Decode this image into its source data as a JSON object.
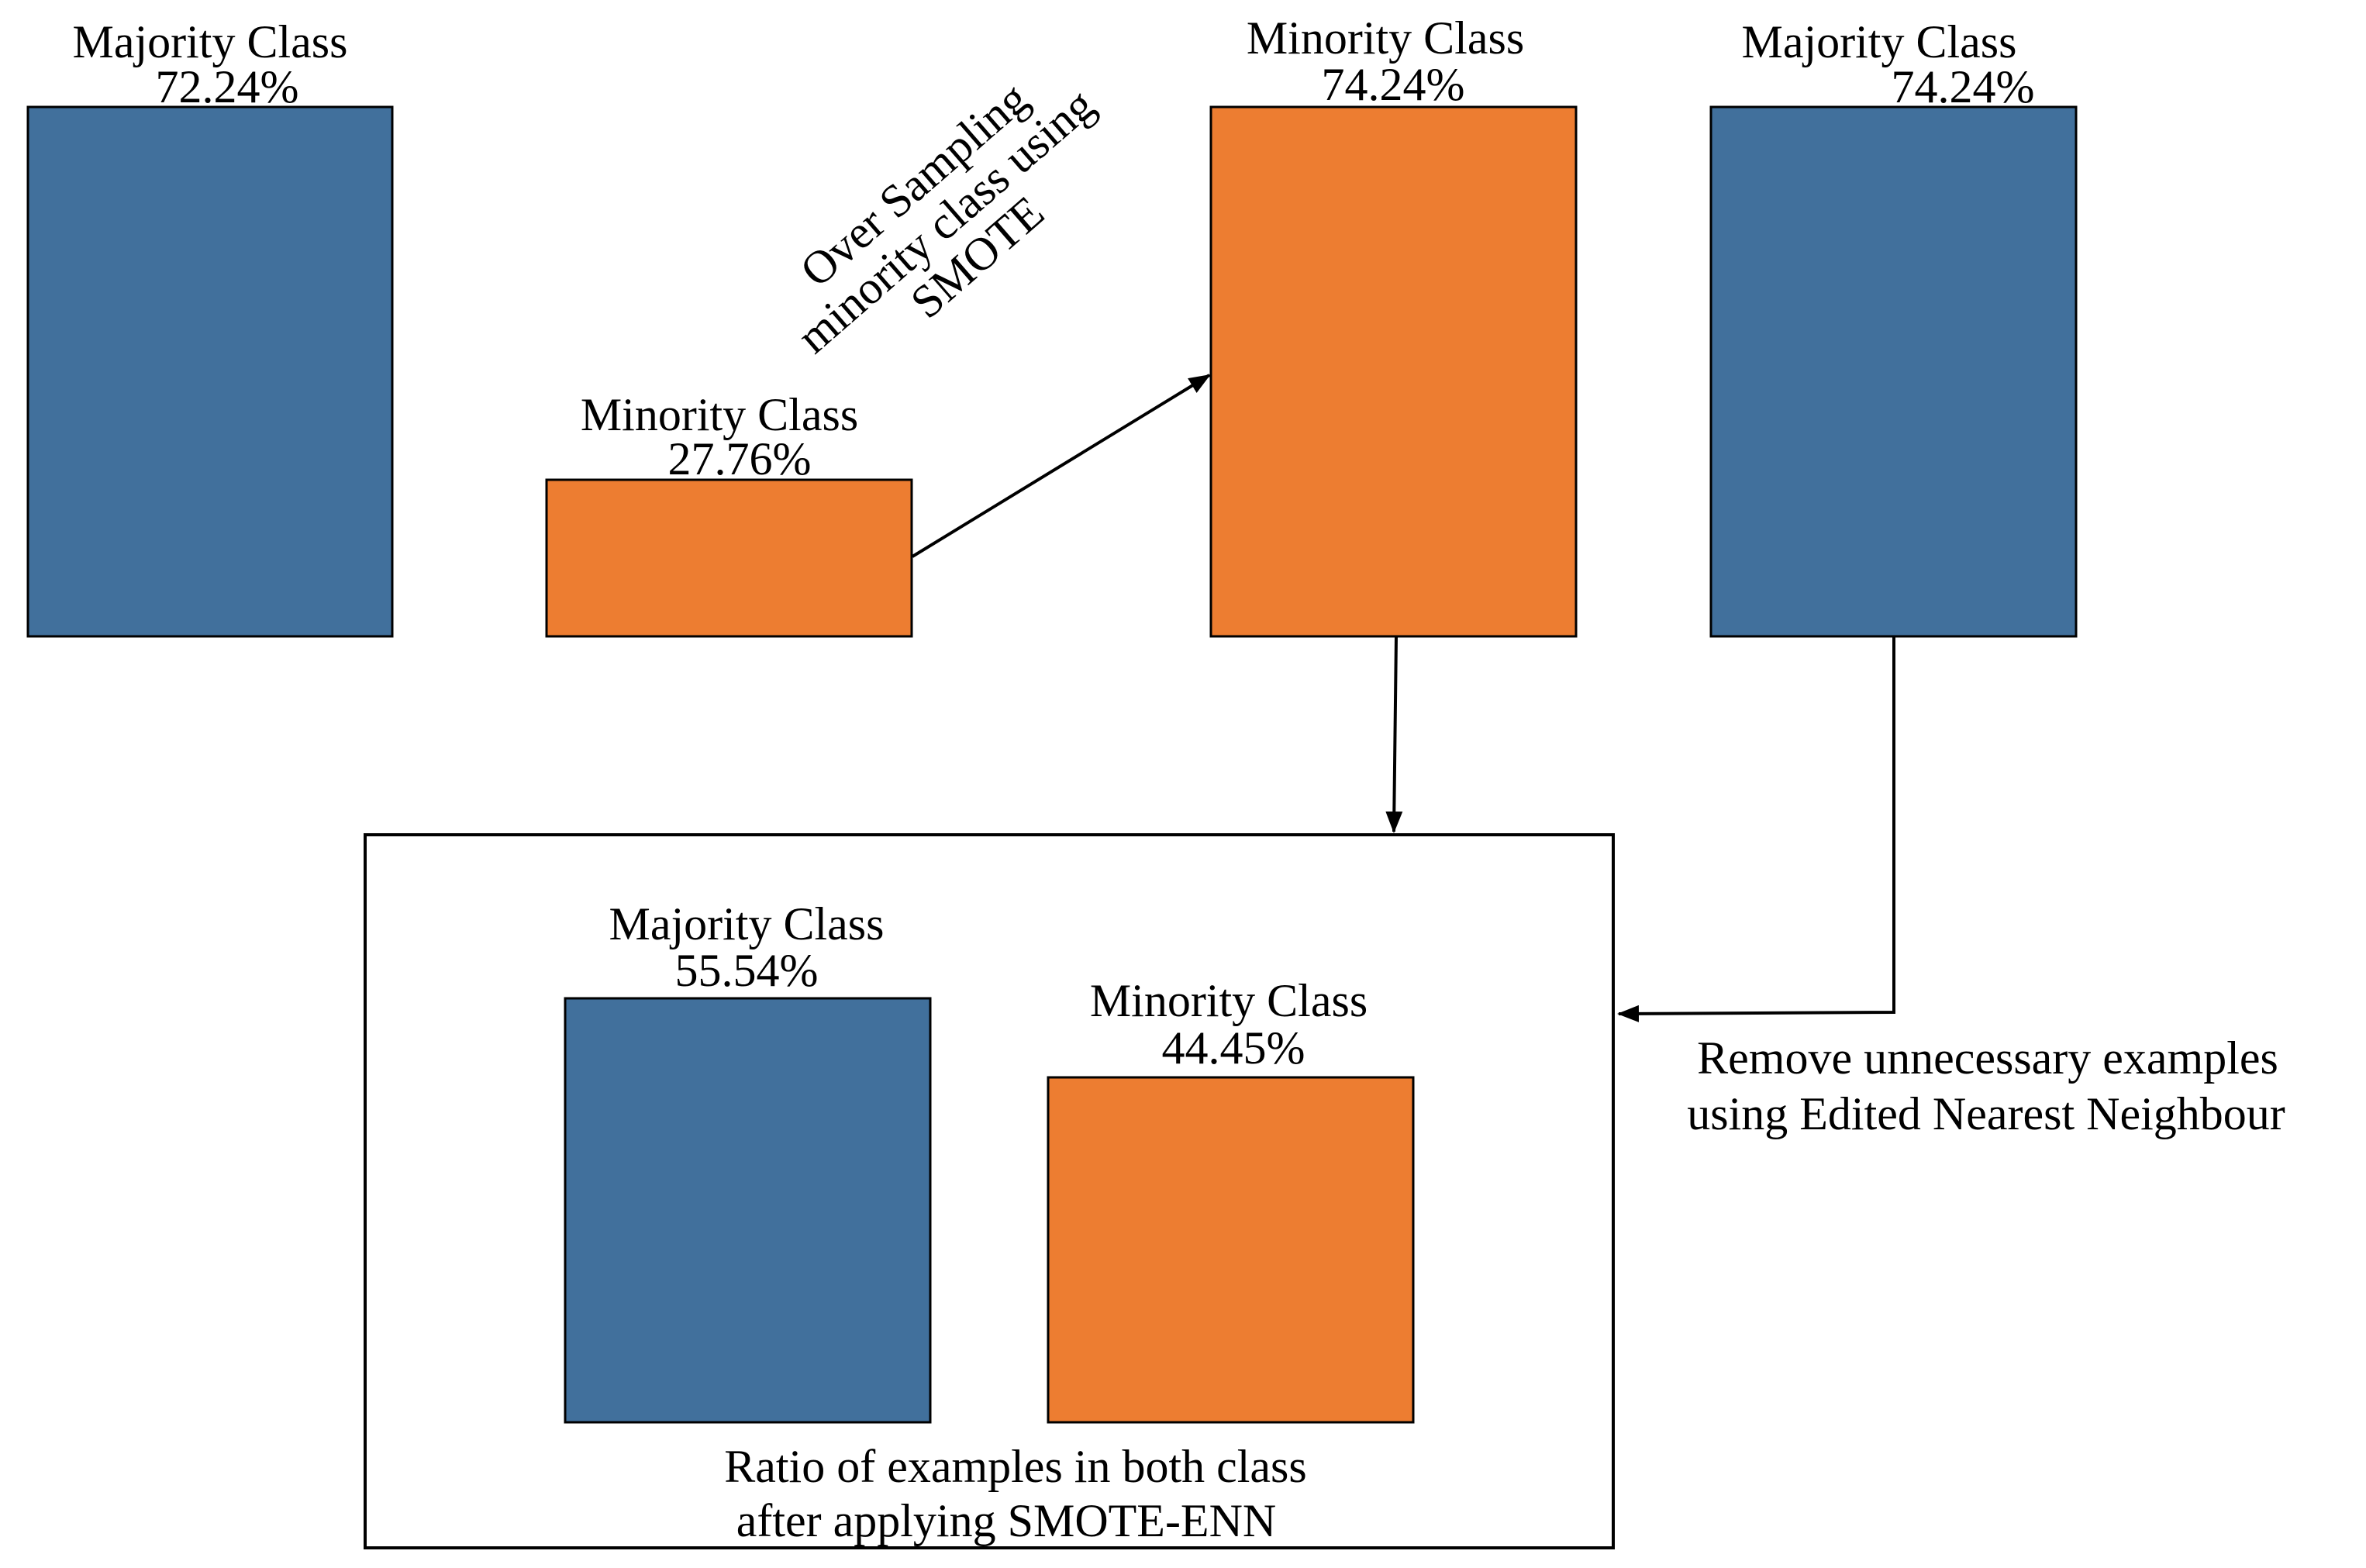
{
  "colors": {
    "majority": "#41709C",
    "minority": "#ED7D31",
    "stroke": "#000000",
    "background": "#FFFFFF"
  },
  "original": {
    "majority": {
      "label": "Majority Class",
      "percent": "72.24%",
      "value": 72.24
    },
    "minority": {
      "label": "Minority Class",
      "percent": "27.76%",
      "value": 27.76
    }
  },
  "oversampled": {
    "minority": {
      "label": "Minority Class",
      "percent": "74.24%",
      "value": 74.24
    },
    "majority": {
      "label": "Majority Class",
      "percent": "74.24%",
      "value": 74.24
    }
  },
  "result": {
    "majority": {
      "label": "Majority Class",
      "percent": "55.54%",
      "value": 55.54
    },
    "minority": {
      "label": "Minority Class",
      "percent": "44.45%",
      "value": 44.45
    },
    "caption_line1": "Ratio of examples in both class",
    "caption_line2": "after applying SMOTE-ENN"
  },
  "smote_annotation": {
    "line1": "Over Sampling",
    "line2": "minority class using",
    "line3": "SMOTE"
  },
  "enn_annotation": {
    "line1": "Remove unnecessary examples",
    "line2": "using Edited Nearest Neighbour"
  }
}
